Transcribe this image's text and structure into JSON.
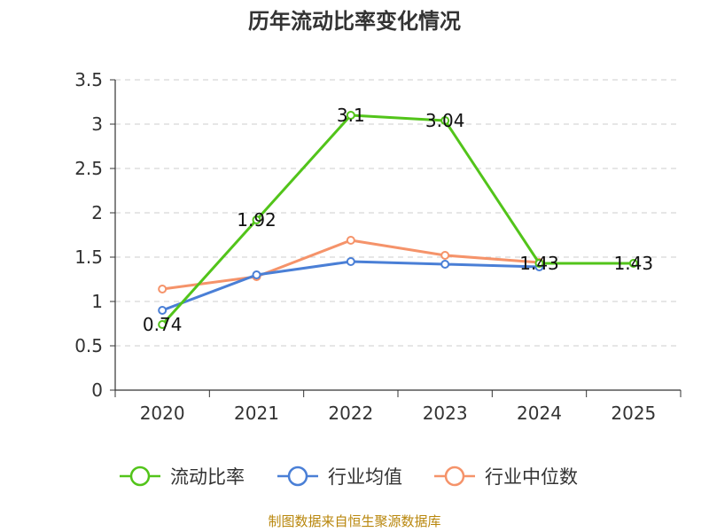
{
  "chart_data": {
    "type": "line",
    "title": "历年流动比率变化情况",
    "categories": [
      "2020",
      "2021",
      "2022",
      "2023",
      "2024",
      "2025"
    ],
    "ylim": [
      0,
      3.5
    ],
    "yticks": [
      "0",
      "0.5",
      "1",
      "1.5",
      "2",
      "2.5",
      "3",
      "3.5"
    ],
    "ytick_values": [
      0,
      0.5,
      1,
      1.5,
      2,
      2.5,
      3,
      3.5
    ],
    "grid": true,
    "legend_position": "bottom",
    "series": [
      {
        "name": "流动比率",
        "color": "#52c41a",
        "values": [
          0.74,
          1.92,
          3.1,
          3.04,
          1.43,
          1.43
        ],
        "labels": [
          "0.74",
          "1.92",
          "3.1",
          "3.04",
          "1.43",
          "1.43"
        ]
      },
      {
        "name": "行业均值",
        "color": "#4a7fd6",
        "values": [
          0.9,
          1.3,
          1.45,
          1.42,
          1.39,
          null
        ]
      },
      {
        "name": "行业中位数",
        "color": "#f5936a",
        "values": [
          1.14,
          1.28,
          1.69,
          1.52,
          1.44,
          null
        ]
      }
    ]
  },
  "footer": {
    "source": "制图数据来自恒生聚源数据库"
  }
}
